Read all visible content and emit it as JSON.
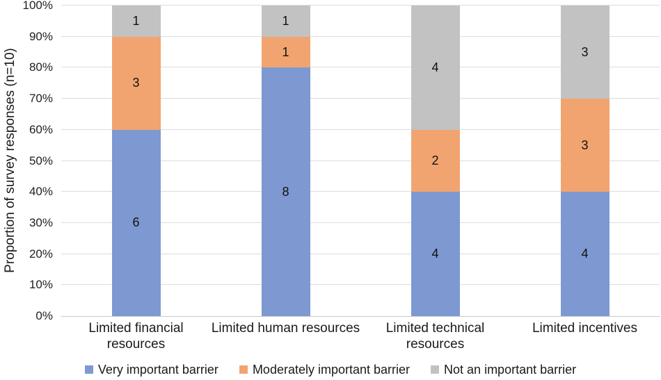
{
  "chart_data": {
    "type": "bar",
    "stacked": true,
    "percent_axis": true,
    "title": "",
    "ylabel": "Proportion of survey responses (n=10)",
    "xlabel": "",
    "categories": [
      "Limited financial\nresources",
      "Limited human resources",
      "Limited technical\nresources",
      "Limited incentives"
    ],
    "series": [
      {
        "name": "Very important barrier",
        "color": "#7e99d1",
        "values": [
          6,
          8,
          4,
          4
        ]
      },
      {
        "name": "Moderately important barrier",
        "color": "#f1a470",
        "values": [
          3,
          1,
          2,
          3
        ]
      },
      {
        "name": "Not an important barrier",
        "color": "#c2c2c2",
        "values": [
          1,
          1,
          4,
          3
        ]
      }
    ],
    "total_per_category": 10,
    "y_ticks": [
      "0%",
      "10%",
      "20%",
      "30%",
      "40%",
      "50%",
      "60%",
      "70%",
      "80%",
      "90%",
      "100%"
    ],
    "ylim": [
      0,
      100
    ],
    "grid": true,
    "legend_position": "bottom"
  },
  "colors": {
    "gridline": "#dcdcdc",
    "axis_line": "#c9c9c9",
    "text": "#1a1a1a",
    "background": "#ffffff"
  }
}
